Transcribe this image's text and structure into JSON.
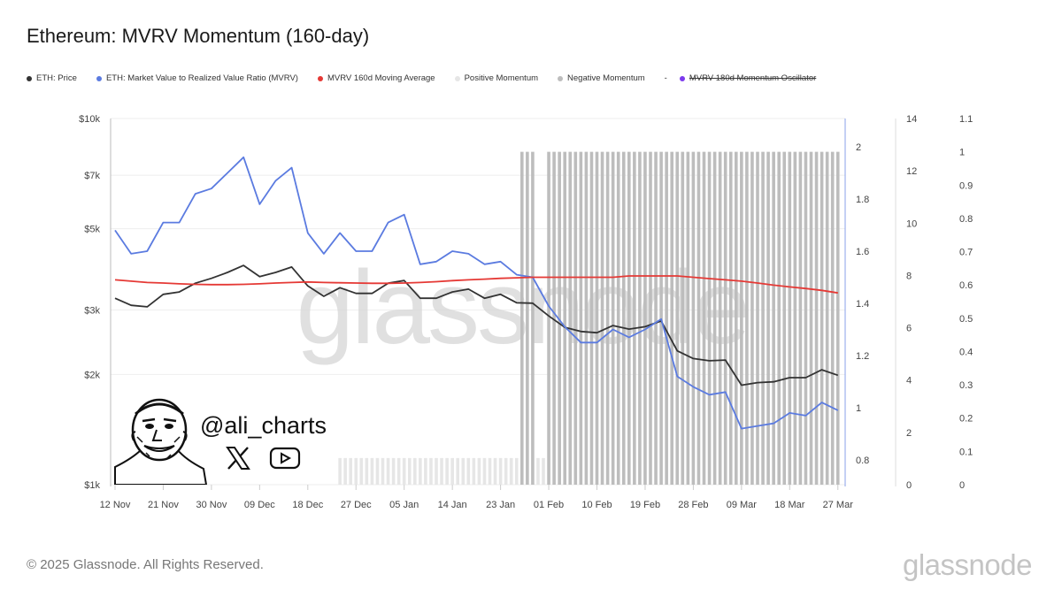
{
  "title": "Ethereum: MVRV Momentum (160-day)",
  "legend": [
    {
      "label": "ETH: Price",
      "color": "#333333",
      "strike": false
    },
    {
      "label": "ETH: Market Value to Realized Value Ratio (MVRV)",
      "color": "#5b7be0",
      "strike": false
    },
    {
      "label": "MVRV 160d Moving Average",
      "color": "#e53935",
      "strike": false
    },
    {
      "label": "Positive Momentum",
      "color": "#e6e6e6",
      "strike": false
    },
    {
      "label": "Negative Momentum",
      "color": "#bdbdbd",
      "strike": false
    },
    {
      "label": "MVRV 180d Momentum Oscillator",
      "color": "#7c3aed",
      "strike": true,
      "prefix": "-"
    }
  ],
  "overlay": {
    "handle": "@ali_charts",
    "icons": [
      "x-logo-icon",
      "youtube-icon"
    ]
  },
  "footer": "© 2025 Glassnode. All Rights Reserved.",
  "watermark": "glassnode",
  "logo": "glassnode",
  "chart_data": {
    "type": "line",
    "title": "Ethereum: MVRV Momentum (160-day)",
    "x_tick_labels": [
      "12 Nov",
      "21 Nov",
      "30 Nov",
      "09 Dec",
      "18 Dec",
      "27 Dec",
      "05 Jan",
      "14 Jan",
      "23 Jan",
      "01 Feb",
      "10 Feb",
      "19 Feb",
      "28 Feb",
      "09 Mar",
      "18 Mar",
      "27 Mar"
    ],
    "x_range": [
      "2024-11-12",
      "2025-03-27"
    ],
    "axes": {
      "price": {
        "scale": "log",
        "range": [
          1000,
          10000
        ],
        "tick_labels": [
          "$10k",
          "$7k",
          "$5k",
          "$3k",
          "$2k",
          "$1k"
        ],
        "tick_values": [
          10000,
          7000,
          5000,
          3000,
          2000,
          1000
        ]
      },
      "mvrv": {
        "scale": "linear",
        "tick_labels": [
          "2",
          "1.8",
          "1.6",
          "1.4",
          "1.2",
          "1",
          "0.8"
        ],
        "tick_values": [
          2,
          1.8,
          1.6,
          1.4,
          1.2,
          1,
          0.8
        ]
      },
      "axis3": {
        "scale": "linear",
        "range": [
          0,
          14
        ],
        "tick_labels": [
          "14",
          "12",
          "10",
          "8",
          "6",
          "4",
          "2",
          "0"
        ]
      },
      "oscillator": {
        "scale": "linear",
        "range": [
          0,
          1.1
        ],
        "tick_labels": [
          "1.1",
          "1",
          "0.9",
          "0.8",
          "0.7",
          "0.6",
          "0.5",
          "0.4",
          "0.3",
          "0.2",
          "0.1",
          "0"
        ]
      }
    },
    "grid": true,
    "legend_position": "top-left",
    "x": [
      "2024-11-12",
      "2024-11-15",
      "2024-11-18",
      "2024-11-21",
      "2024-11-24",
      "2024-11-27",
      "2024-11-30",
      "2024-12-03",
      "2024-12-06",
      "2024-12-09",
      "2024-12-12",
      "2024-12-15",
      "2024-12-18",
      "2024-12-21",
      "2024-12-24",
      "2024-12-27",
      "2024-12-30",
      "2025-01-02",
      "2025-01-05",
      "2025-01-08",
      "2025-01-11",
      "2025-01-14",
      "2025-01-17",
      "2025-01-20",
      "2025-01-23",
      "2025-01-26",
      "2025-01-29",
      "2025-02-01",
      "2025-02-04",
      "2025-02-07",
      "2025-02-10",
      "2025-02-13",
      "2025-02-16",
      "2025-02-19",
      "2025-02-22",
      "2025-02-25",
      "2025-02-28",
      "2025-03-03",
      "2025-03-06",
      "2025-03-09",
      "2025-03-12",
      "2025-03-15",
      "2025-03-18",
      "2025-03-21",
      "2025-03-24",
      "2025-03-27"
    ],
    "series": [
      {
        "name": "ETH: Price",
        "axis": "price",
        "color": "#333333",
        "values": [
          3230,
          3090,
          3060,
          3310,
          3360,
          3550,
          3660,
          3800,
          3970,
          3700,
          3800,
          3930,
          3490,
          3270,
          3450,
          3330,
          3330,
          3550,
          3610,
          3230,
          3230,
          3360,
          3420,
          3230,
          3310,
          3140,
          3130,
          2890,
          2690,
          2620,
          2600,
          2720,
          2660,
          2700,
          2800,
          2320,
          2210,
          2180,
          2190,
          1870,
          1900,
          1910,
          1960,
          1960,
          2060,
          1990
        ]
      },
      {
        "name": "ETH: Market Value to Realized Value Ratio (MVRV)",
        "axis": "mvrv",
        "color": "#5b7be0",
        "values": [
          1.68,
          1.59,
          1.6,
          1.71,
          1.71,
          1.82,
          1.84,
          1.9,
          1.96,
          1.78,
          1.87,
          1.92,
          1.67,
          1.59,
          1.67,
          1.6,
          1.6,
          1.71,
          1.74,
          1.55,
          1.56,
          1.6,
          1.59,
          1.55,
          1.56,
          1.51,
          1.5,
          1.39,
          1.31,
          1.25,
          1.25,
          1.3,
          1.27,
          1.3,
          1.34,
          1.12,
          1.08,
          1.05,
          1.06,
          0.92,
          0.93,
          0.94,
          0.98,
          0.97,
          1.02,
          0.99
        ]
      },
      {
        "name": "MVRV 160d Moving Average",
        "axis": "mvrv",
        "color": "#e53935",
        "values": [
          1.49,
          1.485,
          1.48,
          1.478,
          1.475,
          1.473,
          1.472,
          1.472,
          1.473,
          1.475,
          1.478,
          1.48,
          1.482,
          1.48,
          1.479,
          1.478,
          1.477,
          1.477,
          1.478,
          1.48,
          1.483,
          1.487,
          1.49,
          1.493,
          1.496,
          1.498,
          1.5,
          1.5,
          1.5,
          1.5,
          1.5,
          1.5,
          1.505,
          1.505,
          1.505,
          1.505,
          1.5,
          1.495,
          1.49,
          1.485,
          1.478,
          1.47,
          1.463,
          1.457,
          1.45,
          1.44
        ]
      }
    ],
    "momentum": {
      "axis": "oscillator",
      "segments": [
        {
          "type": "Positive Momentum",
          "from": "2024-12-24",
          "to": "2025-01-26",
          "value": 0.08,
          "color": "#e6e6e6"
        },
        {
          "type": "Negative Momentum",
          "from": "2025-01-27",
          "to": "2025-01-29",
          "value": 1.0,
          "color": "#bdbdbd"
        },
        {
          "type": "Positive Momentum",
          "from": "2025-01-30",
          "to": "2025-01-31",
          "value": 0.08,
          "color": "#e6e6e6"
        },
        {
          "type": "Negative Momentum",
          "from": "2025-02-01",
          "to": "2025-03-27",
          "value": 1.0,
          "color": "#bdbdbd"
        }
      ]
    }
  }
}
